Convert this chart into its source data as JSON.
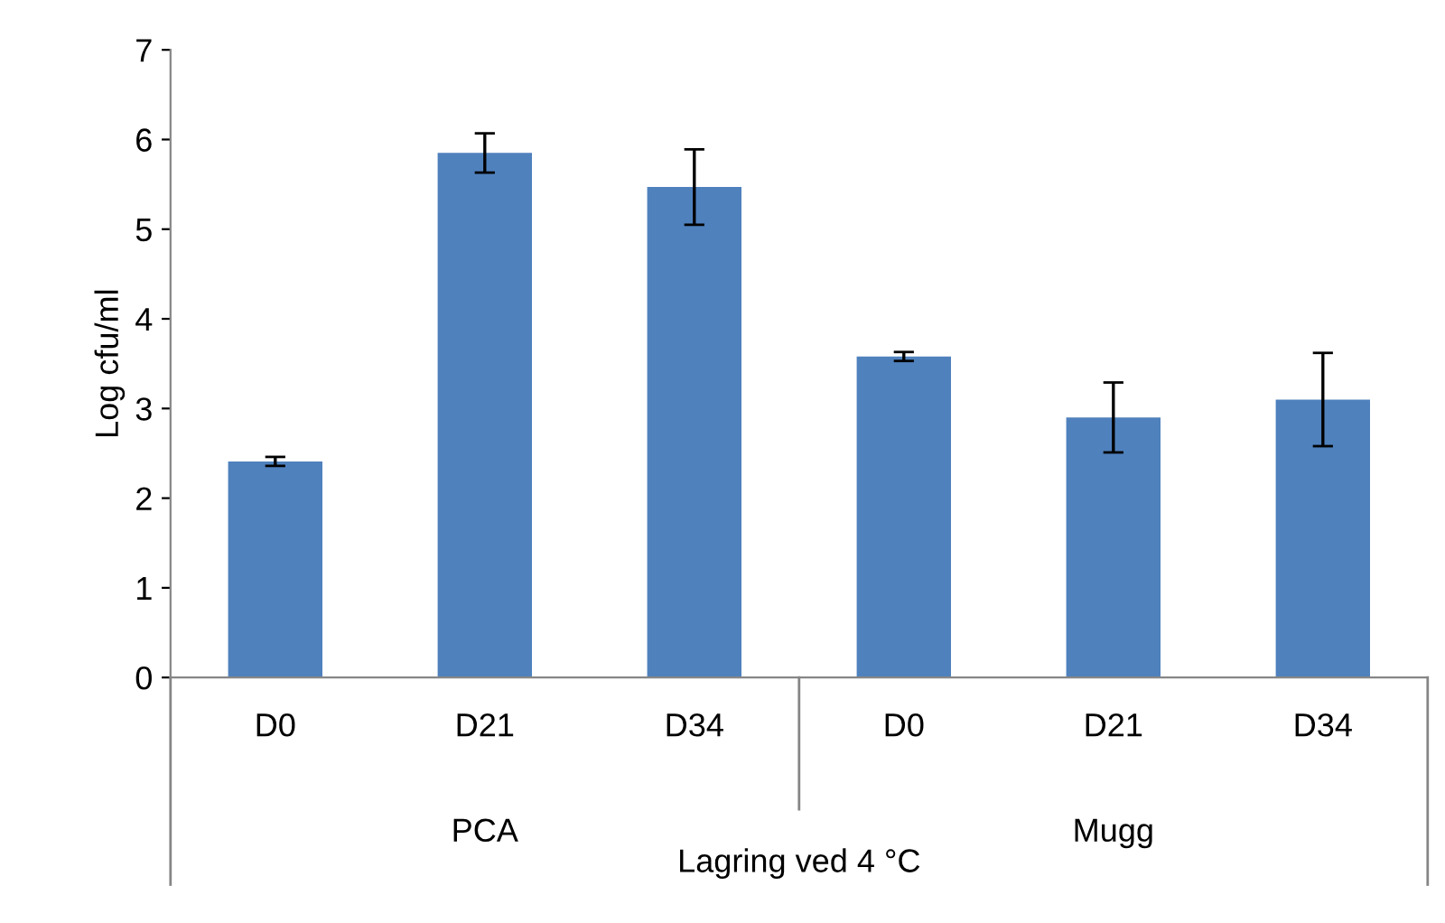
{
  "chart_data": {
    "type": "bar",
    "categories": [
      "D0",
      "D21",
      "D34",
      "D0",
      "D21",
      "D34"
    ],
    "values": [
      2.41,
      5.85,
      5.47,
      3.58,
      2.9,
      3.1
    ],
    "errors": [
      0.05,
      0.22,
      0.42,
      0.05,
      0.39,
      0.52
    ],
    "color": "#4f81bd",
    "xlabel": "Lagring ved 4 °C",
    "ylabel": "Log cfu/ml",
    "annotations": [
      "PCA",
      "Mugg"
    ],
    "ylim": [
      0,
      7
    ],
    "yticks": [
      0,
      1,
      2,
      3,
      4,
      5,
      6,
      7
    ],
    "grid": false,
    "legend": false
  }
}
